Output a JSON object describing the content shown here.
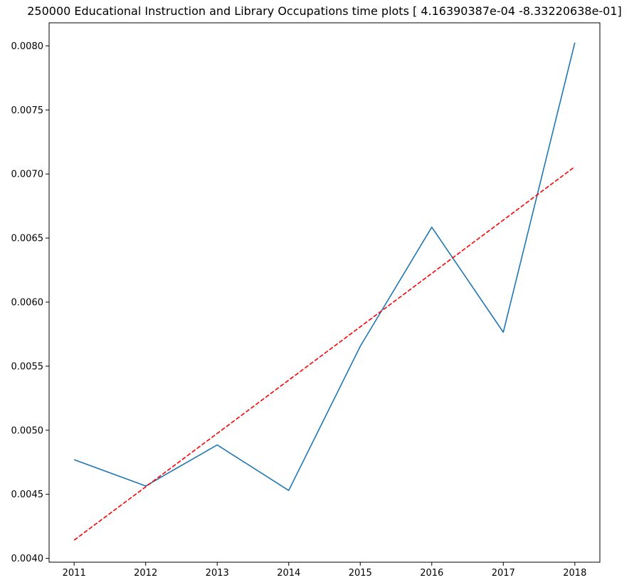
{
  "chart_data": {
    "type": "line",
    "title": "250000 Educational Instruction and Library Occupations time plots [ 4.16390387e-04 -8.33220638e-01]",
    "xlabel": "",
    "ylabel": "",
    "x": [
      "2011",
      "2012",
      "2013",
      "2014",
      "2015",
      "2016",
      "2017",
      "2018"
    ],
    "xlim": [
      2010.65,
      2018.35
    ],
    "ylim": [
      0.00397,
      0.00818
    ],
    "yticks": [
      "0.0040",
      "0.0045",
      "0.0050",
      "0.0055",
      "0.0060",
      "0.0065",
      "0.0070",
      "0.0075",
      "0.0080"
    ],
    "grid": false,
    "series": [
      {
        "style": "solid",
        "color": "#1f77b4",
        "values": [
          0.00477,
          0.004565,
          0.004885,
          0.00453,
          0.005655,
          0.006585,
          0.005765,
          0.008025
        ]
      },
      {
        "style": "dashed",
        "color": "#ff0000",
        "values": [
          0.004142,
          0.004558,
          0.004975,
          0.005391,
          0.005807,
          0.006224,
          0.00664,
          0.007057
        ]
      }
    ]
  }
}
